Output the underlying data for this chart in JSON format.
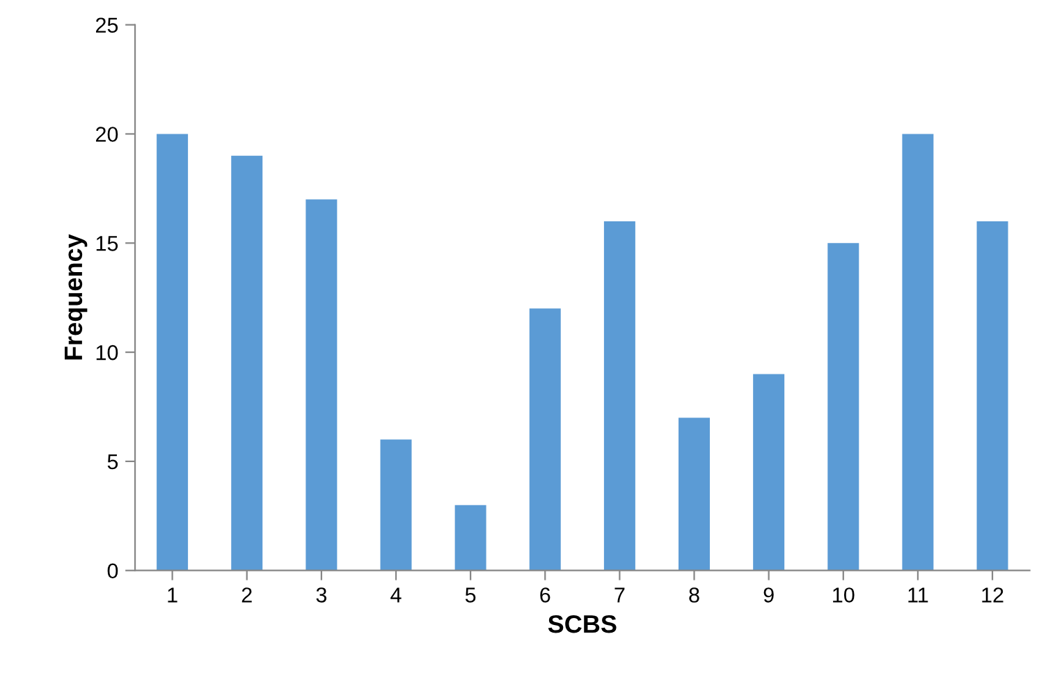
{
  "chart_data": {
    "type": "bar",
    "xlabel": "SCBS",
    "ylabel": "Frequency",
    "categories": [
      "1",
      "2",
      "3",
      "4",
      "5",
      "6",
      "7",
      "8",
      "9",
      "10",
      "11",
      "12"
    ],
    "values": [
      20,
      19,
      17,
      6,
      3,
      12,
      16,
      7,
      9,
      15,
      20,
      16
    ],
    "color": "#5b9bd5",
    "ylim": [
      0,
      25
    ],
    "yticks": [
      0,
      5,
      10,
      15,
      20,
      25
    ],
    "grid": false,
    "legend": false
  }
}
